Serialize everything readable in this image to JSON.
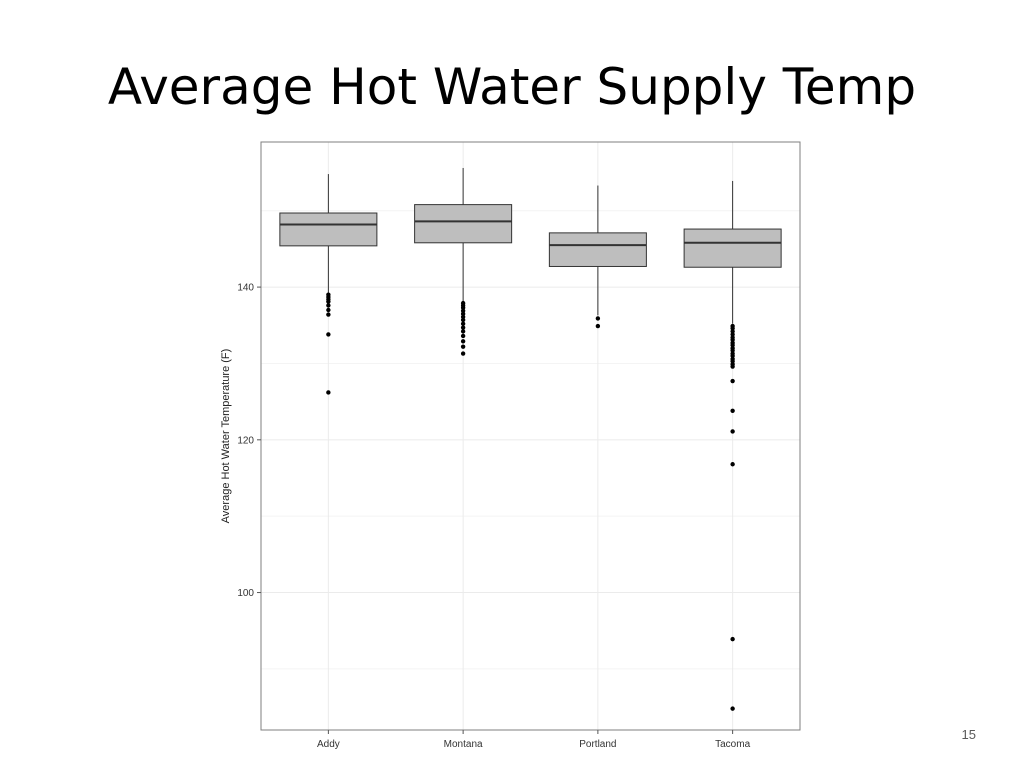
{
  "slide": {
    "title": "Average Hot Water Supply Temp",
    "page_number": "15"
  },
  "chart_data": {
    "type": "box",
    "title": "",
    "xlabel": "",
    "ylabel": "Average Hot Water Temperature (F)",
    "ylim": [
      82,
      159
    ],
    "yticks": [
      100,
      120,
      140
    ],
    "grid": true,
    "colors": {
      "box_fill": "#bebebe",
      "stroke": "#333333",
      "grid": "#ebebeb",
      "border": "#7f7f7f"
    },
    "categories": [
      "Addy",
      "Montana",
      "Portland",
      "Tacoma"
    ],
    "boxes": [
      {
        "category": "Addy",
        "min": 139.2,
        "q1": 145.4,
        "median": 148.2,
        "q3": 149.7,
        "max": 154.8,
        "outliers": [
          139.0,
          138.7,
          138.4,
          138.1,
          137.6,
          137.0,
          136.4,
          133.8,
          126.2
        ]
      },
      {
        "category": "Montana",
        "min": 138.1,
        "q1": 145.8,
        "median": 148.6,
        "q3": 150.8,
        "max": 155.6,
        "outliers": [
          137.9,
          137.6,
          137.3,
          136.9,
          136.5,
          136.1,
          135.7,
          135.2,
          134.7,
          134.2,
          133.6,
          132.9,
          132.2,
          131.3
        ]
      },
      {
        "category": "Portland",
        "min": 136.3,
        "q1": 142.7,
        "median": 145.5,
        "q3": 147.1,
        "max": 153.3,
        "outliers": [
          135.9,
          134.9
        ]
      },
      {
        "category": "Tacoma",
        "min": 135.2,
        "q1": 142.6,
        "median": 145.8,
        "q3": 147.6,
        "max": 153.9,
        "outliers": [
          134.9,
          134.6,
          134.2,
          133.8,
          133.4,
          133.1,
          132.7,
          132.4,
          132.0,
          131.7,
          131.3,
          131.0,
          130.6,
          130.3,
          129.9,
          129.6,
          127.7,
          123.8,
          121.1,
          116.8,
          93.9,
          84.8
        ]
      }
    ]
  }
}
